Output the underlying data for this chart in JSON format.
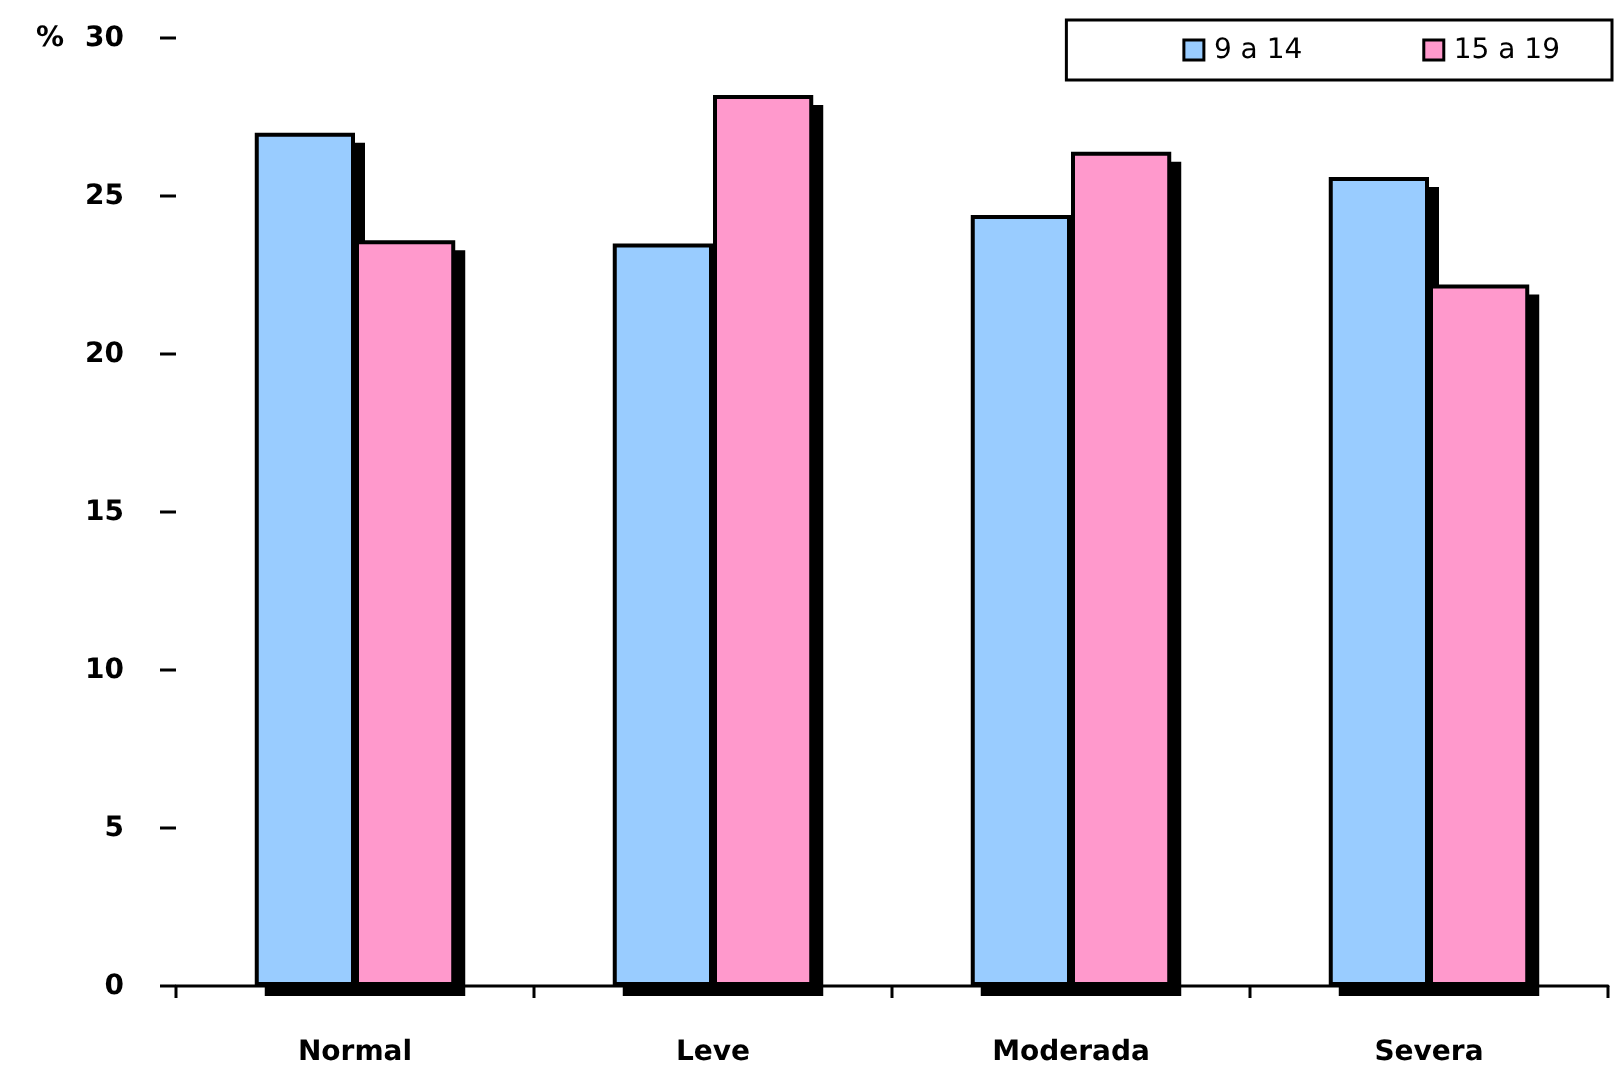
{
  "chart_data": {
    "type": "bar",
    "ylabel": "%",
    "categories": [
      "Normal",
      "Leve",
      "Moderada",
      "Severa"
    ],
    "series": [
      {
        "name": "9 a 14",
        "color": "#99ccff",
        "values": [
          27.0,
          23.5,
          24.4,
          25.6
        ]
      },
      {
        "name": "15 a 19",
        "color": "#ff99cc",
        "values": [
          23.6,
          28.2,
          26.4,
          22.2
        ]
      }
    ],
    "ylim": [
      0,
      30
    ],
    "yticks": [
      0,
      5,
      10,
      15,
      20,
      25,
      30
    ],
    "legend": "top right"
  }
}
